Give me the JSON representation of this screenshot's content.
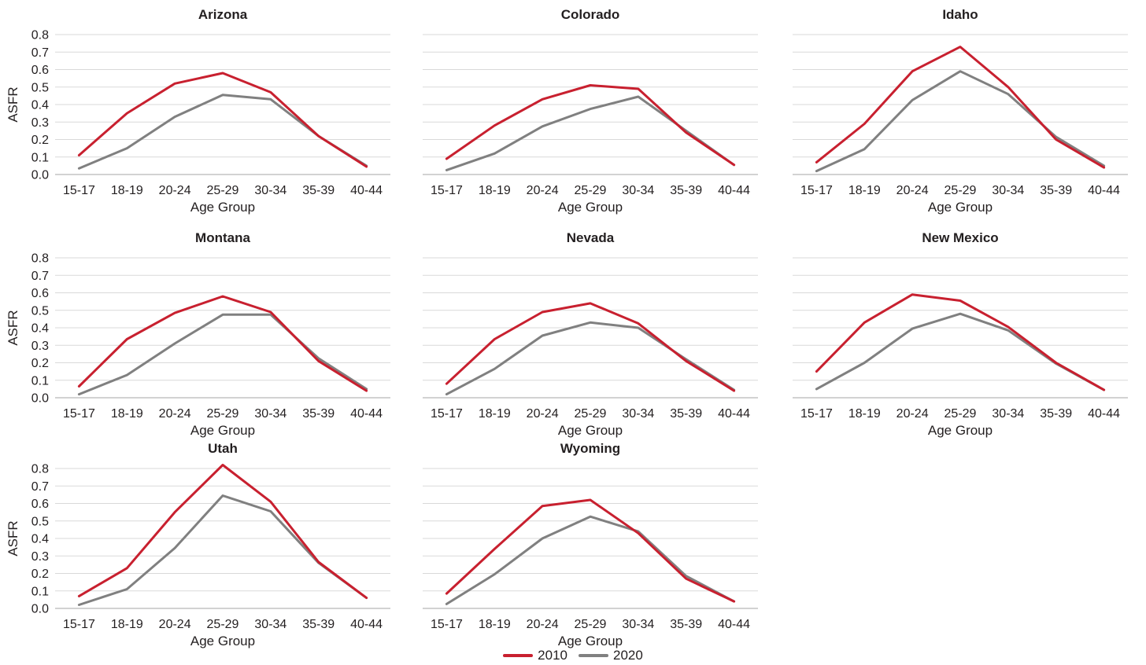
{
  "colors": {
    "s2010": "#c8202f",
    "s2020": "#808080",
    "grid": "#d9d9d9"
  },
  "legend": [
    {
      "name": "2010",
      "color": "#c8202f"
    },
    {
      "name": "2020",
      "color": "#808080"
    }
  ],
  "chart_data": [
    {
      "type": "line",
      "title": "Arizona",
      "xlabel": "Age Group",
      "ylabel": "ASFR",
      "categories": [
        "15-17",
        "18-19",
        "20-24",
        "25-29",
        "30-34",
        "35-39",
        "40-44"
      ],
      "yticks": [
        "0.0",
        "0.1",
        "0.2",
        "0.3",
        "0.4",
        "0.5",
        "0.6",
        "0.7",
        "0.8"
      ],
      "ylim": [
        0,
        0.8
      ],
      "grid": true,
      "series": [
        {
          "name": "2010",
          "values": [
            0.11,
            0.35,
            0.52,
            0.58,
            0.47,
            0.22,
            0.045
          ]
        },
        {
          "name": "2020",
          "values": [
            0.035,
            0.15,
            0.33,
            0.455,
            0.43,
            0.22,
            0.05
          ]
        }
      ]
    },
    {
      "type": "line",
      "title": "Colorado",
      "xlabel": "Age Group",
      "ylabel": "",
      "categories": [
        "15-17",
        "18-19",
        "20-24",
        "25-29",
        "30-34",
        "35-39",
        "40-44"
      ],
      "yticks": [],
      "ylim": [
        0,
        0.8
      ],
      "grid": true,
      "series": [
        {
          "name": "2010",
          "values": [
            0.09,
            0.28,
            0.43,
            0.51,
            0.49,
            0.24,
            0.055
          ]
        },
        {
          "name": "2020",
          "values": [
            0.025,
            0.12,
            0.275,
            0.375,
            0.445,
            0.25,
            0.055
          ]
        }
      ]
    },
    {
      "type": "line",
      "title": "Idaho",
      "xlabel": "Age Group",
      "ylabel": "",
      "categories": [
        "15-17",
        "18-19",
        "20-24",
        "25-29",
        "30-34",
        "35-39",
        "40-44"
      ],
      "yticks": [],
      "ylim": [
        0,
        0.8
      ],
      "grid": true,
      "series": [
        {
          "name": "2010",
          "values": [
            0.07,
            0.29,
            0.59,
            0.73,
            0.5,
            0.2,
            0.04
          ]
        },
        {
          "name": "2020",
          "values": [
            0.02,
            0.145,
            0.425,
            0.59,
            0.46,
            0.215,
            0.05
          ]
        }
      ]
    },
    {
      "type": "line",
      "title": "Montana",
      "xlabel": "Age Group",
      "ylabel": "ASFR",
      "categories": [
        "15-17",
        "18-19",
        "20-24",
        "25-29",
        "30-34",
        "35-39",
        "40-44"
      ],
      "yticks": [
        "0.0",
        "0.1",
        "0.2",
        "0.3",
        "0.4",
        "0.5",
        "0.6",
        "0.7",
        "0.8"
      ],
      "ylim": [
        0,
        0.8
      ],
      "grid": true,
      "series": [
        {
          "name": "2010",
          "values": [
            0.065,
            0.335,
            0.485,
            0.58,
            0.49,
            0.21,
            0.04
          ]
        },
        {
          "name": "2020",
          "values": [
            0.02,
            0.13,
            0.31,
            0.475,
            0.475,
            0.225,
            0.05
          ]
        }
      ]
    },
    {
      "type": "line",
      "title": "Nevada",
      "xlabel": "Age Group",
      "ylabel": "",
      "categories": [
        "15-17",
        "18-19",
        "20-24",
        "25-29",
        "30-34",
        "35-39",
        "40-44"
      ],
      "yticks": [],
      "ylim": [
        0,
        0.8
      ],
      "grid": true,
      "series": [
        {
          "name": "2010",
          "values": [
            0.08,
            0.335,
            0.49,
            0.54,
            0.425,
            0.21,
            0.04
          ]
        },
        {
          "name": "2020",
          "values": [
            0.02,
            0.165,
            0.355,
            0.43,
            0.4,
            0.22,
            0.045
          ]
        }
      ]
    },
    {
      "type": "line",
      "title": "New Mexico",
      "xlabel": "Age Group",
      "ylabel": "",
      "categories": [
        "15-17",
        "18-19",
        "20-24",
        "25-29",
        "30-34",
        "35-39",
        "40-44"
      ],
      "yticks": [],
      "ylim": [
        0,
        0.8
      ],
      "grid": true,
      "series": [
        {
          "name": "2010",
          "values": [
            0.15,
            0.43,
            0.59,
            0.555,
            0.405,
            0.2,
            0.045
          ]
        },
        {
          "name": "2020",
          "values": [
            0.05,
            0.2,
            0.395,
            0.48,
            0.385,
            0.195,
            0.045
          ]
        }
      ]
    },
    {
      "type": "line",
      "title": "Utah",
      "xlabel": "Age Group",
      "ylabel": "ASFR",
      "categories": [
        "15-17",
        "18-19",
        "20-24",
        "25-29",
        "30-34",
        "35-39",
        "40-44"
      ],
      "yticks": [
        "0.0",
        "0.1",
        "0.2",
        "0.3",
        "0.4",
        "0.5",
        "0.6",
        "0.7",
        "0.8"
      ],
      "ylim": [
        0,
        0.8
      ],
      "grid": true,
      "series": [
        {
          "name": "2010",
          "values": [
            0.07,
            0.23,
            0.55,
            0.82,
            0.61,
            0.265,
            0.06
          ]
        },
        {
          "name": "2020",
          "values": [
            0.02,
            0.11,
            0.345,
            0.645,
            0.555,
            0.26,
            0.06
          ]
        }
      ]
    },
    {
      "type": "line",
      "title": "Wyoming",
      "xlabel": "Age Group",
      "ylabel": "",
      "categories": [
        "15-17",
        "18-19",
        "20-24",
        "25-29",
        "30-34",
        "35-39",
        "40-44"
      ],
      "yticks": [],
      "ylim": [
        0,
        0.8
      ],
      "grid": true,
      "series": [
        {
          "name": "2010",
          "values": [
            0.085,
            0.34,
            0.585,
            0.62,
            0.43,
            0.17,
            0.04
          ]
        },
        {
          "name": "2020",
          "values": [
            0.025,
            0.195,
            0.4,
            0.525,
            0.44,
            0.185,
            0.04
          ]
        }
      ]
    }
  ]
}
